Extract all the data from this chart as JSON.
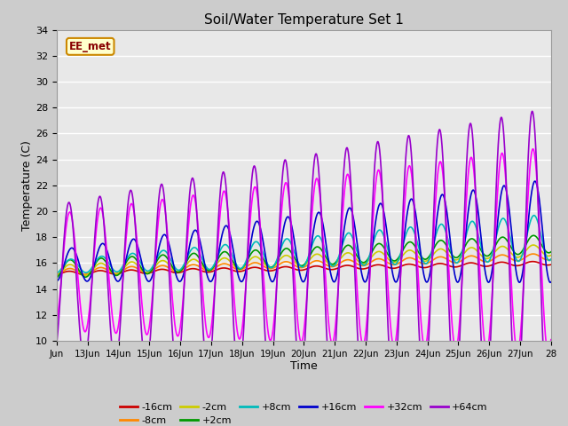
{
  "title": "Soil/Water Temperature Set 1",
  "xlabel": "Time",
  "ylabel": "Temperature (C)",
  "ylim": [
    10,
    34
  ],
  "tick_labels": [
    "Jun",
    "13Jun",
    "14Jun",
    "15Jun",
    "16Jun",
    "17Jun",
    "18Jun",
    "19Jun",
    "20Jun",
    "21Jun",
    "22Jun",
    "23Jun",
    "24Jun",
    "25Jun",
    "26Jun",
    "27Jun",
    "28"
  ],
  "tick_positions": [
    0,
    1,
    2,
    3,
    4,
    5,
    6,
    7,
    8,
    9,
    10,
    11,
    12,
    13,
    14,
    15,
    16
  ],
  "yticks": [
    10,
    12,
    14,
    16,
    18,
    20,
    22,
    24,
    26,
    28,
    30,
    32,
    34
  ],
  "bg_color": "#e8e8e8",
  "watermark_text": "EE_met",
  "watermark_bg": "#ffffcc",
  "watermark_border": "#cc8800",
  "series": {
    "-16cm": {
      "color": "#cc0000",
      "lw": 1.2
    },
    "-8cm": {
      "color": "#ff8800",
      "lw": 1.2
    },
    "-2cm": {
      "color": "#cccc00",
      "lw": 1.2
    },
    "+2cm": {
      "color": "#009900",
      "lw": 1.2
    },
    "+8cm": {
      "color": "#00bbbb",
      "lw": 1.2
    },
    "+16cm": {
      "color": "#0000cc",
      "lw": 1.2
    },
    "+32cm": {
      "color": "#ff00ff",
      "lw": 1.2
    },
    "+64cm": {
      "color": "#9900cc",
      "lw": 1.2
    }
  },
  "legend_order": [
    "-16cm",
    "-8cm",
    "-2cm",
    "+2cm",
    "+8cm",
    "+16cm",
    "+32cm",
    "+64cm"
  ]
}
